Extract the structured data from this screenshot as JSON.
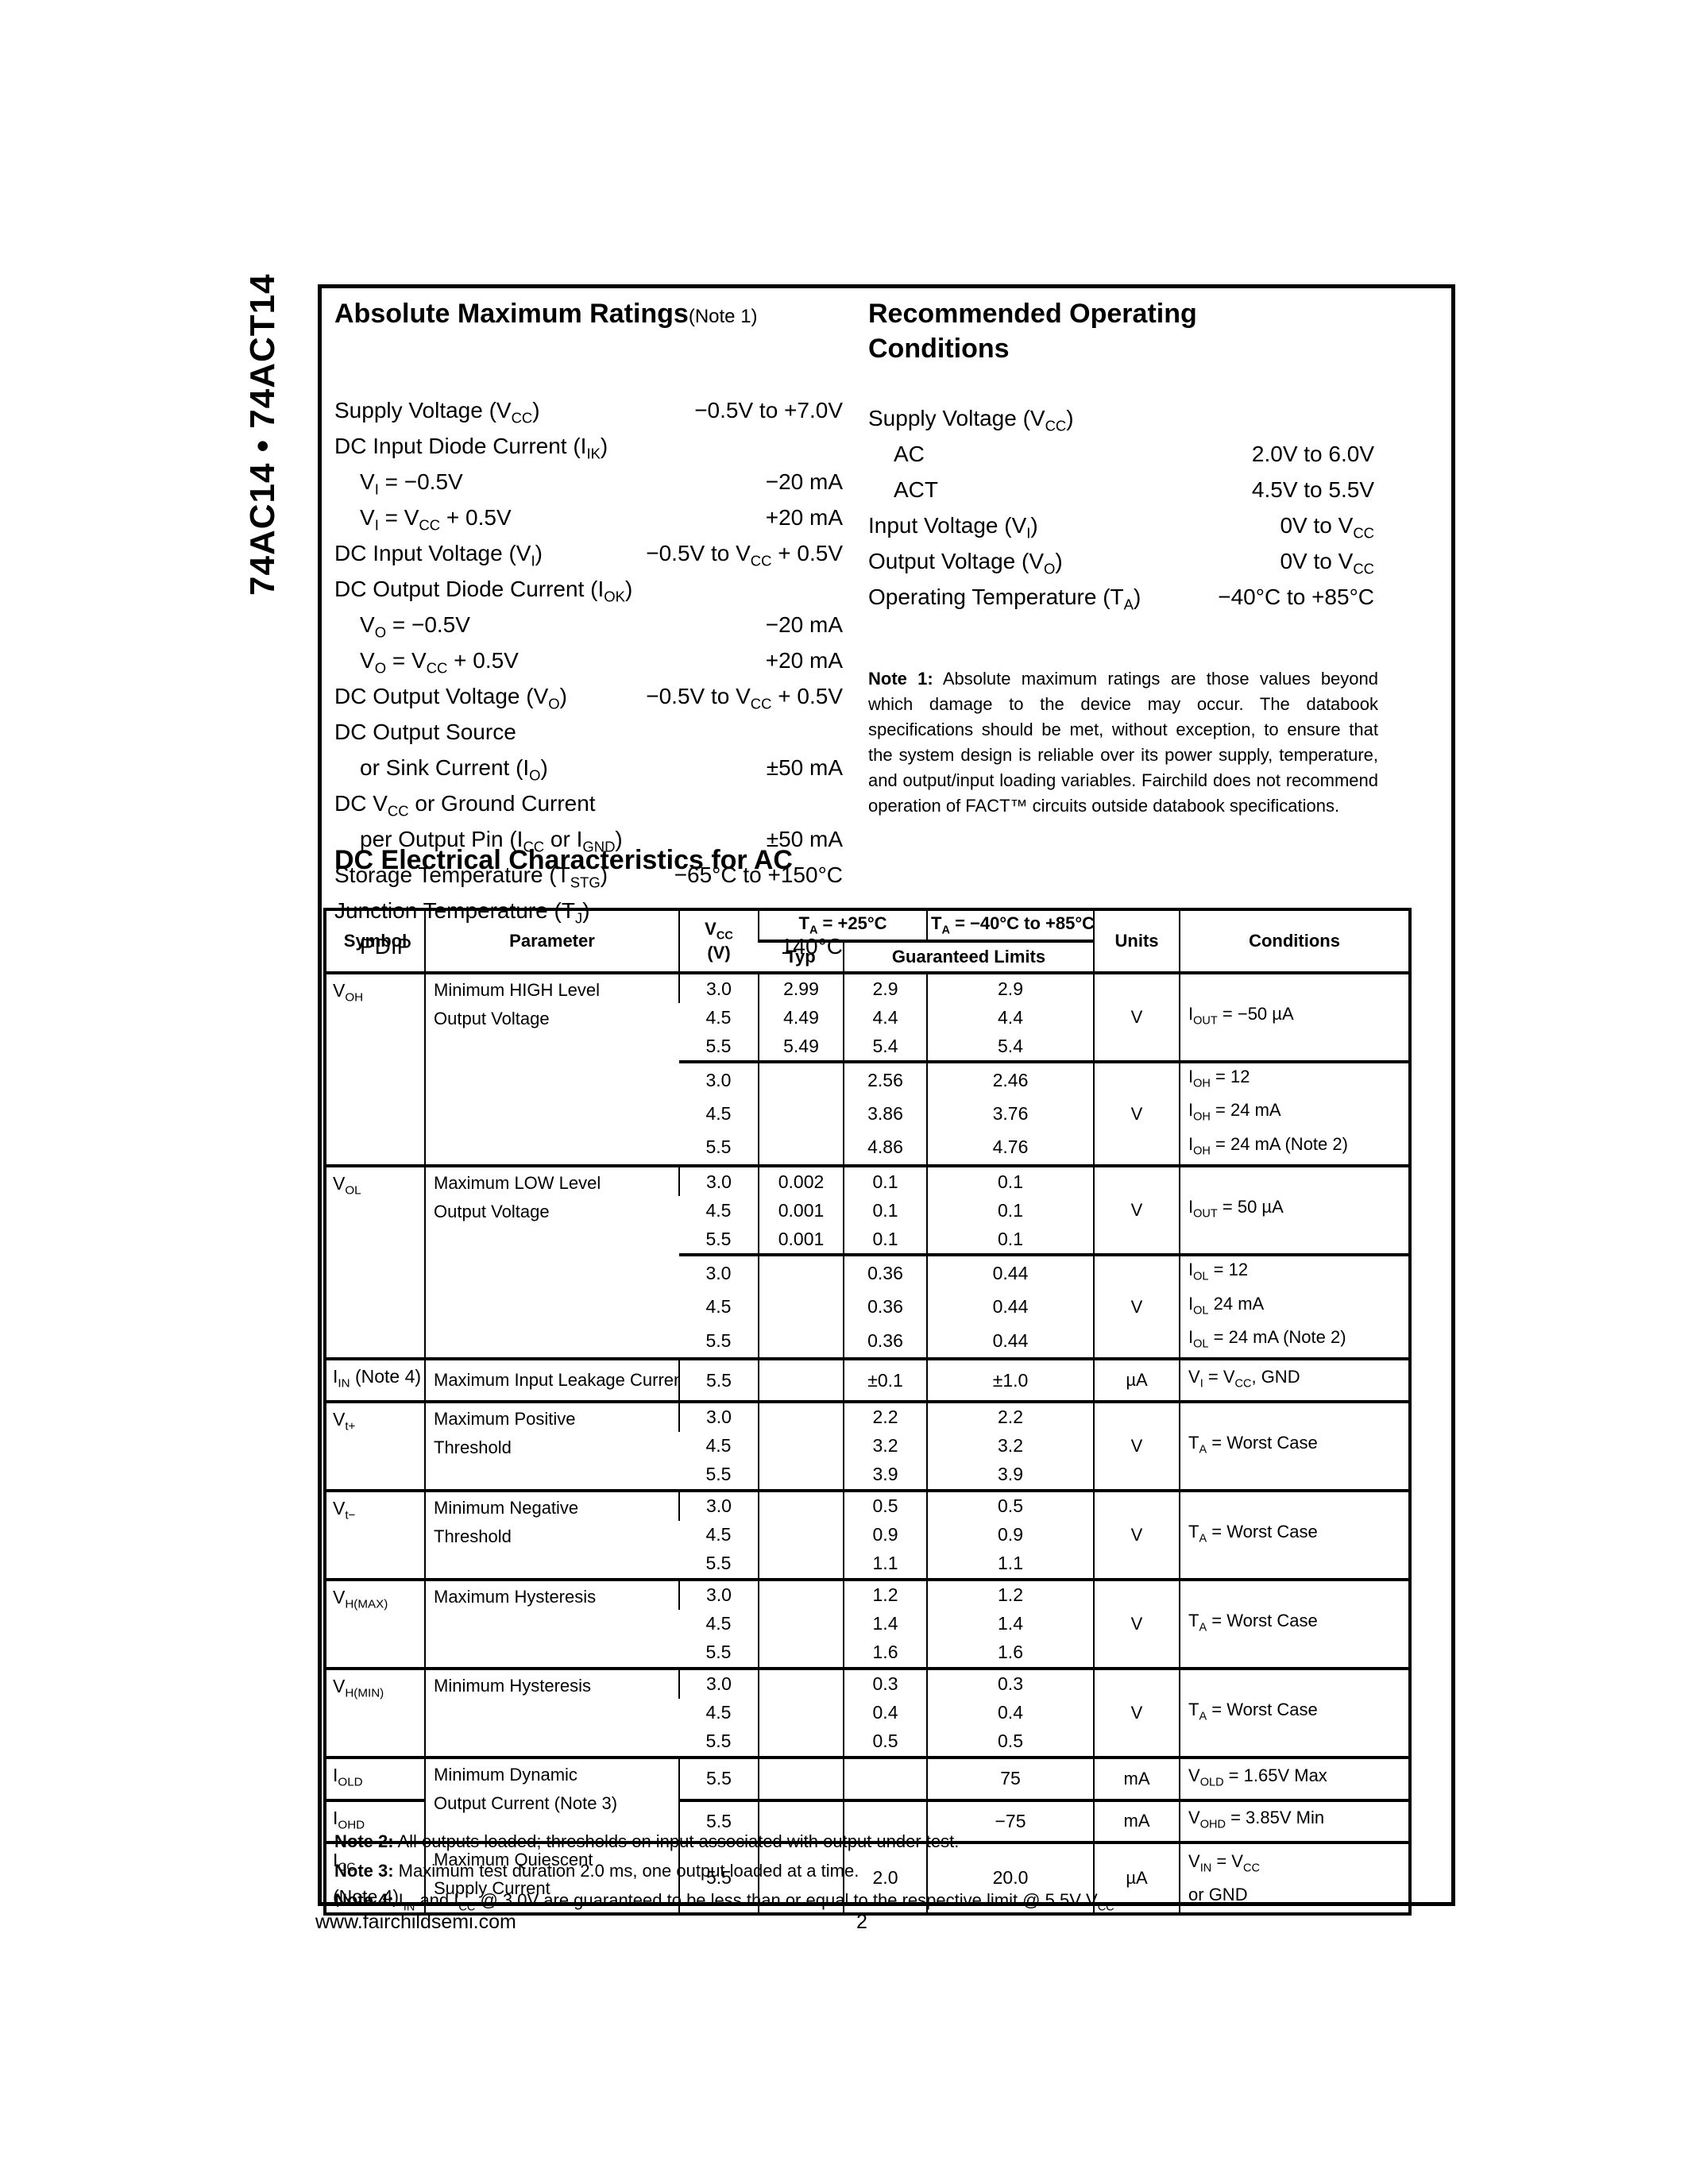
{
  "page": {
    "sidebar_title": "74AC14 • 74ACT14",
    "footer": {
      "url": "www.fairchildsemi.com",
      "page_number": "2"
    }
  },
  "abs_max": {
    "title": "Absolute Maximum Ratings",
    "title_note": "(Note 1)",
    "items": [
      {
        "label": "Supply Voltage (V~CC~)",
        "value": "−0.5V to +7.0V",
        "indent": 0
      },
      {
        "label": "DC Input Diode Current (I~IK~)",
        "value": "",
        "indent": 0
      },
      {
        "label": "V~I~ = −0.5V",
        "value": "−20 mA",
        "indent": 1
      },
      {
        "label": "V~I~ = V~CC~ + 0.5V",
        "value": "+20 mA",
        "indent": 1
      },
      {
        "label": "DC Input Voltage (V~I~)",
        "value": "−0.5V to V~CC~ + 0.5V",
        "indent": 0
      },
      {
        "label": "DC Output Diode Current (I~OK~)",
        "value": "",
        "indent": 0
      },
      {
        "label": "V~O~ = −0.5V",
        "value": "−20 mA",
        "indent": 1
      },
      {
        "label": "V~O~ = V~CC~ + 0.5V",
        "value": "+20 mA",
        "indent": 1
      },
      {
        "label": "DC Output Voltage (V~O~)",
        "value": "−0.5V to V~CC~ + 0.5V",
        "indent": 0
      },
      {
        "label": "DC Output Source",
        "value": "",
        "indent": 0
      },
      {
        "label": "or Sink Current (I~O~)",
        "value": "±50 mA",
        "indent": 1
      },
      {
        "label": "DC V~CC~ or Ground Current",
        "value": "",
        "indent": 0
      },
      {
        "label": "per Output Pin (I~CC~ or I~GND~)",
        "value": "±50 mA",
        "indent": 1
      },
      {
        "label": "Storage Temperature (T~STG~)",
        "value": "−65°C to +150°C",
        "indent": 0
      },
      {
        "label": "Junction Temperature (T~J~)",
        "value": "",
        "indent": 0
      },
      {
        "label": "PDIP",
        "value": "140°C",
        "indent": 1
      }
    ]
  },
  "rec_op": {
    "title": "Recommended Operating\nConditions",
    "items": [
      {
        "label": "Supply Voltage (V~CC~)",
        "value": "",
        "indent": 0
      },
      {
        "label": "AC",
        "value": "2.0V to 6.0V",
        "indent": 1
      },
      {
        "label": "ACT",
        "value": "4.5V to 5.5V",
        "indent": 1
      },
      {
        "label": "Input Voltage (V~I~)",
        "value": "0V to V~CC~",
        "indent": 0
      },
      {
        "label": "Output Voltage (V~O~)",
        "value": "0V to V~CC~",
        "indent": 0
      },
      {
        "label": "Operating Temperature (T~A~)",
        "value": "−40°C to +85°C",
        "indent": 0
      }
    ],
    "note1_bold": "Note 1:",
    "note1_text": " Absolute maximum ratings are those values beyond which damage to the device may occur. The databook specifications should be met, without exception, to ensure that the system design is reliable over its power supply, temperature, and output/input loading variables. Fairchild does not recommend operation of FACT™ circuits outside databook specifications."
  },
  "dc_section": {
    "title": "DC Electrical Characteristics for AC",
    "header_rows": [
      {
        "h": 38,
        "cells": [
          {
            "t": "Symbol",
            "rs": 2,
            "c": "h"
          },
          {
            "t": "Parameter",
            "rs": 2,
            "c": "h"
          },
          {
            "t": "V~CC~\n(V)",
            "rs": 2,
            "c": "h"
          },
          {
            "t": "T~A~ = +25°C",
            "cs": 2,
            "c": "h"
          },
          {
            "t": "T~A~ = −40°C to +85°C",
            "c": "h"
          },
          {
            "t": "Units",
            "rs": 2,
            "c": "h"
          },
          {
            "t": "Conditions",
            "rs": 2,
            "c": "h"
          }
        ]
      },
      {
        "h": 34,
        "cells": [
          {
            "t": "Typ",
            "c": "h hbt"
          },
          {
            "t": "Guaranteed Limits",
            "cs": 2,
            "c": "h hbt"
          }
        ]
      }
    ],
    "body_rows": [
      {
        "rc": "hb",
        "cells": [
          {
            "t": "V~OH~",
            "rs": 6,
            "c": "sym"
          },
          {
            "t": "Minimum HIGH Level\nOutput Voltage",
            "rs": 6,
            "c": "param"
          },
          {
            "t": "3.0",
            "c": "num"
          },
          {
            "t": "2.99",
            "c": "num"
          },
          {
            "t": "2.9",
            "c": "num"
          },
          {
            "t": "2.9",
            "c": "num"
          },
          {
            "t": "V",
            "rs": 3,
            "c": "units"
          },
          {
            "t": "I~OUT~ = −50 µA",
            "rs": 3,
            "c": "cond"
          }
        ]
      },
      {
        "cells": [
          {
            "t": "4.5",
            "c": "num"
          },
          {
            "t": "4.49",
            "c": "num"
          },
          {
            "t": "4.4",
            "c": "num"
          },
          {
            "t": "4.4",
            "c": "num"
          }
        ]
      },
      {
        "cells": [
          {
            "t": "5.5",
            "c": "num"
          },
          {
            "t": "5.49",
            "c": "num"
          },
          {
            "t": "5.4",
            "c": "num"
          },
          {
            "t": "5.4",
            "c": "num"
          }
        ]
      },
      {
        "rc": "hb",
        "cells": [
          {
            "t": "3.0",
            "c": "num"
          },
          {
            "t": "",
            "c": "num"
          },
          {
            "t": "2.56",
            "c": "num"
          },
          {
            "t": "2.46",
            "c": "num"
          },
          {
            "t": "V",
            "rs": 3,
            "c": "units"
          },
          {
            "t": "I~OH~ = 12",
            "c": "cond"
          }
        ]
      },
      {
        "cells": [
          {
            "t": "4.5",
            "c": "num"
          },
          {
            "t": "",
            "c": "num"
          },
          {
            "t": "3.86",
            "c": "num"
          },
          {
            "t": "3.76",
            "c": "num"
          },
          {
            "t": "I~OH~ = 24 mA",
            "c": "cond"
          }
        ]
      },
      {
        "cells": [
          {
            "t": "5.5",
            "c": "num"
          },
          {
            "t": "",
            "c": "num"
          },
          {
            "t": "4.86",
            "c": "num"
          },
          {
            "t": "4.76",
            "c": "num"
          },
          {
            "t": "I~OH~ = 24 mA (Note 2)",
            "c": "cond"
          }
        ]
      },
      {
        "rc": "hb",
        "cells": [
          {
            "t": "V~OL~",
            "rs": 6,
            "c": "sym"
          },
          {
            "t": "Maximum LOW Level\nOutput Voltage",
            "rs": 6,
            "c": "param"
          },
          {
            "t": "3.0",
            "c": "num"
          },
          {
            "t": "0.002",
            "c": "num"
          },
          {
            "t": "0.1",
            "c": "num"
          },
          {
            "t": "0.1",
            "c": "num"
          },
          {
            "t": "V",
            "rs": 3,
            "c": "units"
          },
          {
            "t": "I~OUT~ = 50 µA",
            "rs": 3,
            "c": "cond"
          }
        ]
      },
      {
        "cells": [
          {
            "t": "4.5",
            "c": "num"
          },
          {
            "t": "0.001",
            "c": "num"
          },
          {
            "t": "0.1",
            "c": "num"
          },
          {
            "t": "0.1",
            "c": "num"
          }
        ]
      },
      {
        "cells": [
          {
            "t": "5.5",
            "c": "num"
          },
          {
            "t": "0.001",
            "c": "num"
          },
          {
            "t": "0.1",
            "c": "num"
          },
          {
            "t": "0.1",
            "c": "num"
          }
        ]
      },
      {
        "rc": "hb",
        "cells": [
          {
            "t": "3.0",
            "c": "num"
          },
          {
            "t": "",
            "c": "num"
          },
          {
            "t": "0.36",
            "c": "num"
          },
          {
            "t": "0.44",
            "c": "num"
          },
          {
            "t": "V",
            "rs": 3,
            "c": "units"
          },
          {
            "t": "I~OL~ = 12",
            "c": "cond"
          }
        ]
      },
      {
        "cells": [
          {
            "t": "4.5",
            "c": "num"
          },
          {
            "t": "",
            "c": "num"
          },
          {
            "t": "0.36",
            "c": "num"
          },
          {
            "t": "0.44",
            "c": "num"
          },
          {
            "t": "I~OL~ 24 mA",
            "c": "cond"
          }
        ]
      },
      {
        "cells": [
          {
            "t": "5.5",
            "c": "num"
          },
          {
            "t": "",
            "c": "num"
          },
          {
            "t": "0.36",
            "c": "num"
          },
          {
            "t": "0.44",
            "c": "num"
          },
          {
            "t": "I~OL~ = 24 mA (Note 2)",
            "c": "cond"
          }
        ]
      },
      {
        "rc": "hb",
        "h": 44,
        "cells": [
          {
            "t": "I~IN~ (Note 4)",
            "c": "sym mid"
          },
          {
            "t": "Maximum Input Leakage Current",
            "c": "param mid"
          },
          {
            "t": "5.5",
            "c": "num"
          },
          {
            "t": "",
            "c": "num"
          },
          {
            "t": "±0.1",
            "c": "num"
          },
          {
            "t": "±1.0",
            "c": "num"
          },
          {
            "t": "µA",
            "c": "units"
          },
          {
            "t": "V~I~ = V~CC~, GND",
            "c": "cond"
          }
        ]
      },
      {
        "rc": "hb",
        "cells": [
          {
            "t": "V~t+~",
            "rs": 3,
            "c": "sym"
          },
          {
            "t": "Maximum Positive\nThreshold",
            "rs": 3,
            "c": "param"
          },
          {
            "t": "3.0",
            "c": "num"
          },
          {
            "t": "",
            "c": "num"
          },
          {
            "t": "2.2",
            "c": "num"
          },
          {
            "t": "2.2",
            "c": "num"
          },
          {
            "t": "V",
            "rs": 3,
            "c": "units"
          },
          {
            "t": "T~A~ = Worst Case",
            "rs": 3,
            "c": "cond"
          }
        ]
      },
      {
        "cells": [
          {
            "t": "4.5",
            "c": "num"
          },
          {
            "t": "",
            "c": "num"
          },
          {
            "t": "3.2",
            "c": "num"
          },
          {
            "t": "3.2",
            "c": "num"
          }
        ]
      },
      {
        "cells": [
          {
            "t": "5.5",
            "c": "num"
          },
          {
            "t": "",
            "c": "num"
          },
          {
            "t": "3.9",
            "c": "num"
          },
          {
            "t": "3.9",
            "c": "num"
          }
        ]
      },
      {
        "rc": "hb",
        "cells": [
          {
            "t": "V~t−~",
            "rs": 3,
            "c": "sym"
          },
          {
            "t": "Minimum Negative\nThreshold",
            "rs": 3,
            "c": "param"
          },
          {
            "t": "3.0",
            "c": "num"
          },
          {
            "t": "",
            "c": "num"
          },
          {
            "t": "0.5",
            "c": "num"
          },
          {
            "t": "0.5",
            "c": "num"
          },
          {
            "t": "V",
            "rs": 3,
            "c": "units"
          },
          {
            "t": "T~A~ = Worst Case",
            "rs": 3,
            "c": "cond"
          }
        ]
      },
      {
        "cells": [
          {
            "t": "4.5",
            "c": "num"
          },
          {
            "t": "",
            "c": "num"
          },
          {
            "t": "0.9",
            "c": "num"
          },
          {
            "t": "0.9",
            "c": "num"
          }
        ]
      },
      {
        "cells": [
          {
            "t": "5.5",
            "c": "num"
          },
          {
            "t": "",
            "c": "num"
          },
          {
            "t": "1.1",
            "c": "num"
          },
          {
            "t": "1.1",
            "c": "num"
          }
        ]
      },
      {
        "rc": "hb",
        "cells": [
          {
            "t": "V~H(MAX)~",
            "rs": 3,
            "c": "sym"
          },
          {
            "t": "Maximum Hysteresis",
            "rs": 3,
            "c": "param"
          },
          {
            "t": "3.0",
            "c": "num"
          },
          {
            "t": "",
            "c": "num"
          },
          {
            "t": "1.2",
            "c": "num"
          },
          {
            "t": "1.2",
            "c": "num"
          },
          {
            "t": "V",
            "rs": 3,
            "c": "units"
          },
          {
            "t": "T~A~ = Worst Case",
            "rs": 3,
            "c": "cond"
          }
        ]
      },
      {
        "cells": [
          {
            "t": "4.5",
            "c": "num"
          },
          {
            "t": "",
            "c": "num"
          },
          {
            "t": "1.4",
            "c": "num"
          },
          {
            "t": "1.4",
            "c": "num"
          }
        ]
      },
      {
        "cells": [
          {
            "t": "5.5",
            "c": "num"
          },
          {
            "t": "",
            "c": "num"
          },
          {
            "t": "1.6",
            "c": "num"
          },
          {
            "t": "1.6",
            "c": "num"
          }
        ]
      },
      {
        "rc": "hb",
        "cells": [
          {
            "t": "V~H(MIN)~",
            "rs": 3,
            "c": "sym"
          },
          {
            "t": "Minimum Hysteresis",
            "rs": 3,
            "c": "param"
          },
          {
            "t": "3.0",
            "c": "num"
          },
          {
            "t": "",
            "c": "num"
          },
          {
            "t": "0.3",
            "c": "num"
          },
          {
            "t": "0.3",
            "c": "num"
          },
          {
            "t": "V",
            "rs": 3,
            "c": "units"
          },
          {
            "t": "T~A~ = Worst Case",
            "rs": 3,
            "c": "cond"
          }
        ]
      },
      {
        "cells": [
          {
            "t": "4.5",
            "c": "num"
          },
          {
            "t": "",
            "c": "num"
          },
          {
            "t": "0.4",
            "c": "num"
          },
          {
            "t": "0.4",
            "c": "num"
          }
        ]
      },
      {
        "cells": [
          {
            "t": "5.5",
            "c": "num"
          },
          {
            "t": "",
            "c": "num"
          },
          {
            "t": "0.5",
            "c": "num"
          },
          {
            "t": "0.5",
            "c": "num"
          }
        ]
      },
      {
        "rc": "hb",
        "h": 40,
        "cells": [
          {
            "t": "I~OLD~",
            "c": "sym mid"
          },
          {
            "t": "Minimum Dynamic\nOutput Current (Note 3)",
            "rs": 2,
            "c": "param"
          },
          {
            "t": "5.5",
            "c": "num"
          },
          {
            "t": "",
            "c": "num"
          },
          {
            "t": "",
            "c": "num"
          },
          {
            "t": "75",
            "c": "num"
          },
          {
            "t": "mA",
            "c": "units"
          },
          {
            "t": "V~OLD~ = 1.65V Max",
            "c": "cond"
          }
        ]
      },
      {
        "rc": "hb",
        "h": 40,
        "cells": [
          {
            "t": "I~OHD~",
            "c": "sym mid"
          },
          {
            "t": "5.5",
            "c": "num"
          },
          {
            "t": "",
            "c": "num"
          },
          {
            "t": "",
            "c": "num"
          },
          {
            "t": "−75",
            "c": "num"
          },
          {
            "t": "mA",
            "c": "units"
          },
          {
            "t": "V~OHD~ = 3.85V Min",
            "c": "cond"
          }
        ]
      },
      {
        "rc": "hb",
        "h": 80,
        "cells": [
          {
            "t": "I~CC~\n(Note 4)",
            "c": "sym"
          },
          {
            "t": "Maximum Quiescent\nSupply Current",
            "c": "param"
          },
          {
            "t": "5.5",
            "c": "num"
          },
          {
            "t": "",
            "c": "num"
          },
          {
            "t": "2.0",
            "c": "num"
          },
          {
            "t": "20.0",
            "c": "num"
          },
          {
            "t": "µA",
            "c": "units"
          },
          {
            "t": "V~IN~ = V~CC~\nor GND",
            "c": "cond"
          }
        ]
      }
    ],
    "notes": [
      {
        "bold": "Note 2:",
        "text": " All outputs loaded; thresholds on input associated with output under test."
      },
      {
        "bold": "Note 3:",
        "text": " Maximum test duration 2.0 ms, one output loaded at a time."
      },
      {
        "bold": "Note 4:",
        "text": " I~IN~ and I~CC~ @ 3.0V are guaranteed to be less than or equal to the respective limit @ 5.5V V~CC~."
      }
    ]
  }
}
